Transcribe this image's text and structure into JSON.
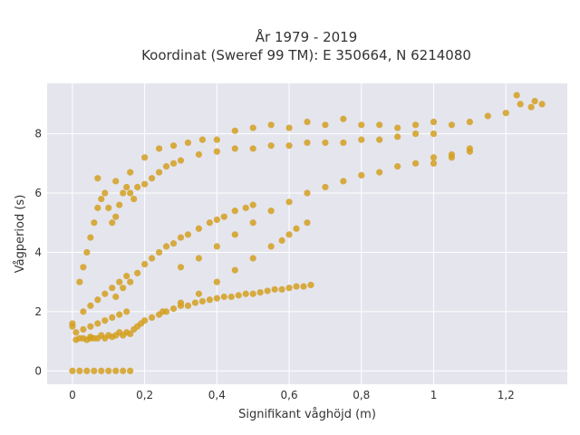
{
  "chart_data": {
    "type": "scatter",
    "title": "År 1979 - 2019",
    "subtitle": "Koordinat (Sweref 99 TM): E 350664, N 6214080",
    "xlabel": "Signifikant våghöjd (m)",
    "ylabel": "Vågperiod (s)",
    "xlim": [
      -0.07,
      1.37
    ],
    "ylim": [
      -0.45,
      9.7
    ],
    "x_ticks": [
      0,
      0.2,
      0.4,
      0.6,
      0.8,
      1,
      1.2
    ],
    "x_tick_labels": [
      "0",
      "0,2",
      "0,4",
      "0,6",
      "0,8",
      "1",
      "1,2"
    ],
    "y_ticks": [
      0,
      2,
      4,
      6,
      8
    ],
    "y_tick_labels": [
      "0",
      "2",
      "4",
      "6",
      "8"
    ],
    "grid": true,
    "legend": "none",
    "colors": {
      "marker": "#D4A020",
      "plot_background": "#E5E5EE",
      "grid": "#FFFFFF"
    },
    "series": [
      {
        "x": [
          0.0,
          0.02,
          0.04,
          0.06,
          0.08,
          0.1,
          0.12,
          0.14,
          0.16,
          0.0,
          0.0,
          0.01,
          0.02,
          0.03,
          0.04,
          0.05,
          0.05,
          0.06,
          0.07,
          0.08,
          0.09,
          0.1,
          0.11,
          0.12,
          0.13,
          0.14,
          0.15,
          0.16,
          0.17,
          0.18,
          0.19,
          0.2,
          0.22,
          0.24,
          0.26,
          0.28,
          0.3,
          0.32,
          0.34,
          0.36,
          0.38,
          0.4,
          0.42,
          0.44,
          0.46,
          0.48,
          0.5,
          0.52,
          0.54,
          0.56,
          0.58,
          0.6,
          0.62,
          0.64,
          0.66,
          0.07,
          0.12,
          0.16,
          0.2,
          0.24,
          0.28,
          0.32,
          0.36,
          0.4,
          0.45,
          0.5,
          0.55,
          0.6,
          0.65,
          0.7,
          0.75,
          0.8,
          0.85,
          0.9,
          0.95,
          1.0,
          1.05,
          1.1,
          1.15,
          1.2,
          1.24,
          1.27,
          1.3,
          1.23,
          1.28,
          1.0,
          1.05,
          1.1,
          0.02,
          0.03,
          0.04,
          0.05,
          0.06,
          0.07,
          0.08,
          0.09,
          0.1,
          0.11,
          0.12,
          0.13,
          0.14,
          0.15,
          0.16,
          0.17,
          0.18,
          0.2,
          0.22,
          0.24,
          0.26,
          0.28,
          0.3,
          0.35,
          0.4,
          0.45,
          0.5,
          0.55,
          0.6,
          0.65,
          0.7,
          0.75,
          0.8,
          0.85,
          0.9,
          0.95,
          1.0,
          0.12,
          0.14,
          0.16,
          0.18,
          0.2,
          0.22,
          0.24,
          0.26,
          0.28,
          0.3,
          0.32,
          0.35,
          0.38,
          0.4,
          0.42,
          0.45,
          0.48,
          0.5,
          0.3,
          0.35,
          0.4,
          0.45,
          0.5,
          0.55,
          0.6,
          0.65,
          0.7,
          0.75,
          0.8,
          0.85,
          0.9,
          0.95,
          1.0,
          1.05,
          1.1,
          0.25,
          0.3,
          0.35,
          0.4,
          0.45,
          0.5,
          0.55,
          0.58,
          0.6,
          0.62,
          0.65,
          0.03,
          0.05,
          0.07,
          0.09,
          0.11,
          0.13,
          0.15,
          0.01,
          0.03,
          0.05,
          0.07,
          0.09,
          0.11,
          0.13,
          0.15
        ],
        "y": [
          0.0,
          0.0,
          0.0,
          0.0,
          0.0,
          0.0,
          0.0,
          0.0,
          0.0,
          1.5,
          1.6,
          1.05,
          1.1,
          1.1,
          1.05,
          1.15,
          1.1,
          1.1,
          1.1,
          1.2,
          1.1,
          1.2,
          1.15,
          1.2,
          1.3,
          1.2,
          1.3,
          1.25,
          1.4,
          1.5,
          1.6,
          1.7,
          1.8,
          1.9,
          2.0,
          2.1,
          2.2,
          2.2,
          2.3,
          2.35,
          2.4,
          2.45,
          2.5,
          2.5,
          2.55,
          2.6,
          2.6,
          2.65,
          2.7,
          2.75,
          2.75,
          2.8,
          2.85,
          2.85,
          2.9,
          6.5,
          6.4,
          6.7,
          7.2,
          7.5,
          7.6,
          7.7,
          7.8,
          7.8,
          8.1,
          8.2,
          8.3,
          8.2,
          8.4,
          8.3,
          8.5,
          8.3,
          8.3,
          8.2,
          8.3,
          8.4,
          8.3,
          8.4,
          8.6,
          8.7,
          9.0,
          8.9,
          9.0,
          9.3,
          9.1,
          7.0,
          7.2,
          7.4,
          3.0,
          3.5,
          4.0,
          4.5,
          5.0,
          5.5,
          5.8,
          6.0,
          5.5,
          5.0,
          5.2,
          5.6,
          6.0,
          6.2,
          6.0,
          5.8,
          6.2,
          6.3,
          6.5,
          6.7,
          6.9,
          7.0,
          7.1,
          7.3,
          7.4,
          7.5,
          7.5,
          7.6,
          7.6,
          7.7,
          7.7,
          7.7,
          7.8,
          7.8,
          7.9,
          8.0,
          8.0,
          2.5,
          2.8,
          3.0,
          3.3,
          3.6,
          3.8,
          4.0,
          4.2,
          4.3,
          4.5,
          4.6,
          4.8,
          5.0,
          5.1,
          5.2,
          5.4,
          5.5,
          5.6,
          3.5,
          3.8,
          4.2,
          4.6,
          5.0,
          5.4,
          5.7,
          6.0,
          6.2,
          6.4,
          6.6,
          6.7,
          6.9,
          7.0,
          7.2,
          7.3,
          7.5,
          2.0,
          2.3,
          2.6,
          3.0,
          3.4,
          3.8,
          4.2,
          4.4,
          4.6,
          4.8,
          5.0,
          2.0,
          2.2,
          2.4,
          2.6,
          2.8,
          3.0,
          3.2,
          1.3,
          1.4,
          1.5,
          1.6,
          1.7,
          1.8,
          1.9,
          2.0
        ]
      }
    ]
  }
}
